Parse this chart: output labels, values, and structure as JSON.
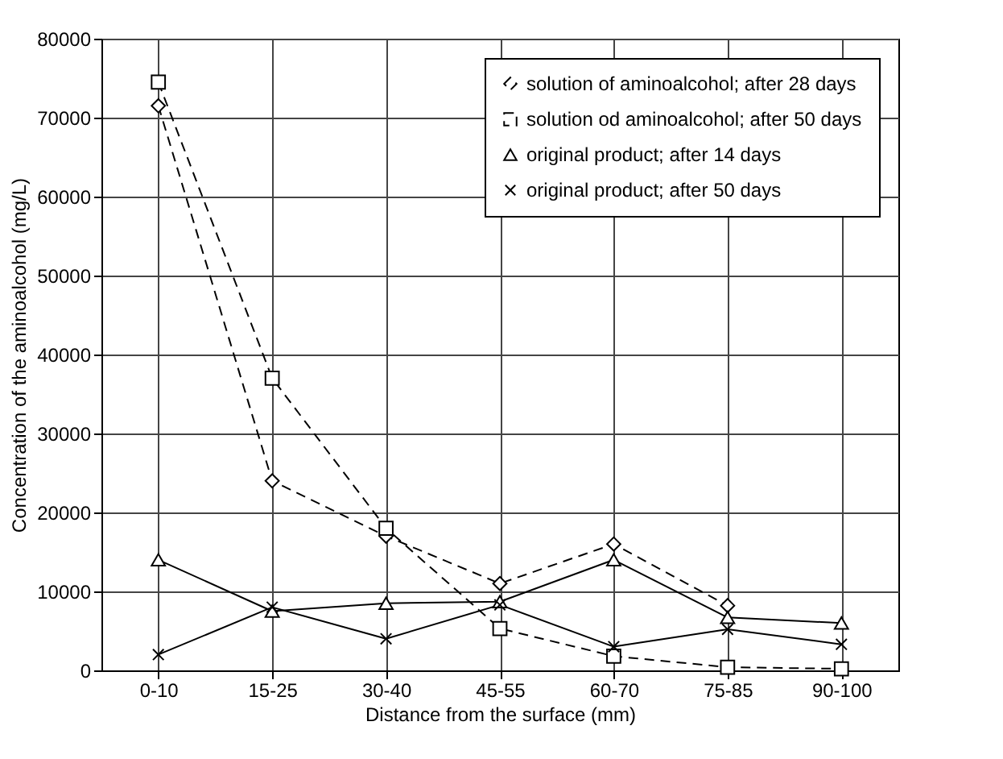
{
  "chart_data": {
    "type": "line",
    "xlabel": "Distance from the surface (mm)",
    "ylabel": "Concentration of the aminoalcohol  (mg/L)",
    "categories": [
      "0-10",
      "15-25",
      "30-40",
      "45-55",
      "60-70",
      "75-85",
      "90-100"
    ],
    "series": [
      {
        "name": "solution of aminoalcohol; after 28 days",
        "color": "#000000",
        "marker": "diamond",
        "line_style": "dashed",
        "values": [
          71500,
          24000,
          17000,
          11000,
          16000,
          8200,
          null
        ]
      },
      {
        "name": "solution od aminoalcohol; after 50 days",
        "color": "#000000",
        "marker": "square",
        "line_style": "dashed",
        "values": [
          74500,
          37000,
          18000,
          5300,
          1800,
          400,
          200
        ]
      },
      {
        "name": "original product; after 14 days",
        "color": "#000000",
        "marker": "triangle",
        "line_style": "solid",
        "values": [
          14000,
          7500,
          8500,
          8700,
          14000,
          6700,
          6000
        ]
      },
      {
        "name": "original product; after 50 days",
        "color": "#000000",
        "marker": "cross",
        "line_style": "solid",
        "values": [
          2000,
          8000,
          4000,
          8300,
          3000,
          5200,
          3300
        ]
      }
    ],
    "ylim": [
      0,
      80000
    ],
    "yticks": [
      0,
      10000,
      20000,
      30000,
      40000,
      50000,
      60000,
      70000,
      80000
    ],
    "grid": true,
    "legend": "top right"
  }
}
